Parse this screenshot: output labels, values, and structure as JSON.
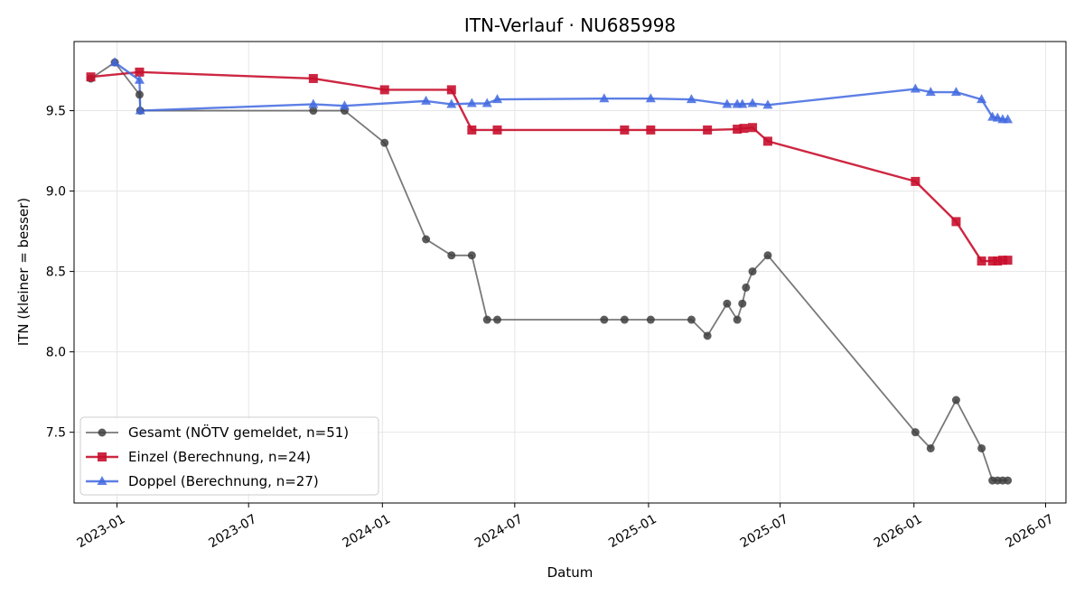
{
  "chart_data": {
    "type": "line",
    "title": "ITN-Verlauf · NU685998",
    "xlabel": "Datum",
    "ylabel": "ITN  (kleiner = besser)",
    "xlim": [
      "2022-11-03",
      "2026-07-29"
    ],
    "ylim": [
      7.06,
      9.93
    ],
    "x_ticks": [
      "2023-01",
      "2023-07",
      "2024-01",
      "2024-07",
      "2025-01",
      "2025-07",
      "2026-01",
      "2026-07"
    ],
    "y_ticks": [
      "7.5",
      "8.0",
      "8.5",
      "9.0",
      "9.5"
    ],
    "grid": true,
    "legend_position": "lower-left",
    "series": [
      {
        "name": "Gesamt (NÖTV gemeldet, n=51)",
        "color": "#404040",
        "marker": "circle",
        "points": [
          [
            "2022-11-26",
            9.7
          ],
          [
            "2022-12-29",
            9.8
          ],
          [
            "2023-02-01",
            9.6
          ],
          [
            "2023-02-02",
            9.5
          ],
          [
            "2023-09-28",
            9.5
          ],
          [
            "2023-11-10",
            9.5
          ],
          [
            "2024-01-04",
            9.3
          ],
          [
            "2024-03-01",
            8.7
          ],
          [
            "2024-04-05",
            8.6
          ],
          [
            "2024-05-03",
            8.6
          ],
          [
            "2024-05-24",
            8.2
          ],
          [
            "2024-06-07",
            8.2
          ],
          [
            "2024-11-01",
            8.2
          ],
          [
            "2024-11-29",
            8.2
          ],
          [
            "2025-01-04",
            8.2
          ],
          [
            "2025-03-01",
            8.2
          ],
          [
            "2025-03-23",
            8.1
          ],
          [
            "2025-04-19",
            8.3
          ],
          [
            "2025-05-03",
            8.2
          ],
          [
            "2025-05-10",
            8.3
          ],
          [
            "2025-05-15",
            8.4
          ],
          [
            "2025-05-24",
            8.5
          ],
          [
            "2025-06-14",
            8.6
          ],
          [
            "2026-01-03",
            7.5
          ],
          [
            "2026-01-24",
            7.4
          ],
          [
            "2026-02-28",
            7.7
          ],
          [
            "2026-04-04",
            7.4
          ],
          [
            "2026-04-19",
            7.2
          ],
          [
            "2026-04-26",
            7.2
          ],
          [
            "2026-05-03",
            7.2
          ],
          [
            "2026-05-10",
            7.2
          ]
        ]
      },
      {
        "name": "Einzel (Berechnung, n=24)",
        "color": "#c8102e",
        "marker": "square",
        "points": [
          [
            "2022-11-26",
            9.71
          ],
          [
            "2023-02-01",
            9.74
          ],
          [
            "2023-09-28",
            9.7
          ],
          [
            "2024-01-04",
            9.63
          ],
          [
            "2024-04-05",
            9.63
          ],
          [
            "2024-05-03",
            9.38
          ],
          [
            "2024-06-07",
            9.38
          ],
          [
            "2024-11-29",
            9.38
          ],
          [
            "2025-01-04",
            9.38
          ],
          [
            "2025-03-23",
            9.38
          ],
          [
            "2025-05-03",
            9.385
          ],
          [
            "2025-05-12",
            9.39
          ],
          [
            "2025-05-24",
            9.395
          ],
          [
            "2025-06-14",
            9.31
          ],
          [
            "2026-01-03",
            9.06
          ],
          [
            "2026-02-28",
            8.81
          ],
          [
            "2026-04-04",
            8.565
          ],
          [
            "2026-04-19",
            8.565
          ],
          [
            "2026-04-26",
            8.565
          ],
          [
            "2026-05-03",
            8.57
          ],
          [
            "2026-05-10",
            8.57
          ]
        ]
      },
      {
        "name": "Doppel (Berechnung, n=27)",
        "color": "#4169e1",
        "marker": "triangle",
        "points": [
          [
            "2022-12-29",
            9.8
          ],
          [
            "2023-02-01",
            9.69
          ],
          [
            "2023-02-02",
            9.5
          ],
          [
            "2023-09-28",
            9.54
          ],
          [
            "2023-11-10",
            9.53
          ],
          [
            "2024-03-01",
            9.56
          ],
          [
            "2024-04-05",
            9.54
          ],
          [
            "2024-05-03",
            9.545
          ],
          [
            "2024-05-24",
            9.545
          ],
          [
            "2024-06-07",
            9.57
          ],
          [
            "2024-11-01",
            9.575
          ],
          [
            "2025-01-04",
            9.575
          ],
          [
            "2025-03-01",
            9.57
          ],
          [
            "2025-04-19",
            9.54
          ],
          [
            "2025-05-03",
            9.54
          ],
          [
            "2025-05-10",
            9.54
          ],
          [
            "2025-05-24",
            9.545
          ],
          [
            "2025-06-14",
            9.535
          ],
          [
            "2026-01-03",
            9.635
          ],
          [
            "2026-01-24",
            9.615
          ],
          [
            "2026-02-28",
            9.615
          ],
          [
            "2026-04-04",
            9.57
          ],
          [
            "2026-04-19",
            9.46
          ],
          [
            "2026-04-26",
            9.455
          ],
          [
            "2026-05-03",
            9.445
          ],
          [
            "2026-05-10",
            9.445
          ]
        ]
      }
    ]
  }
}
